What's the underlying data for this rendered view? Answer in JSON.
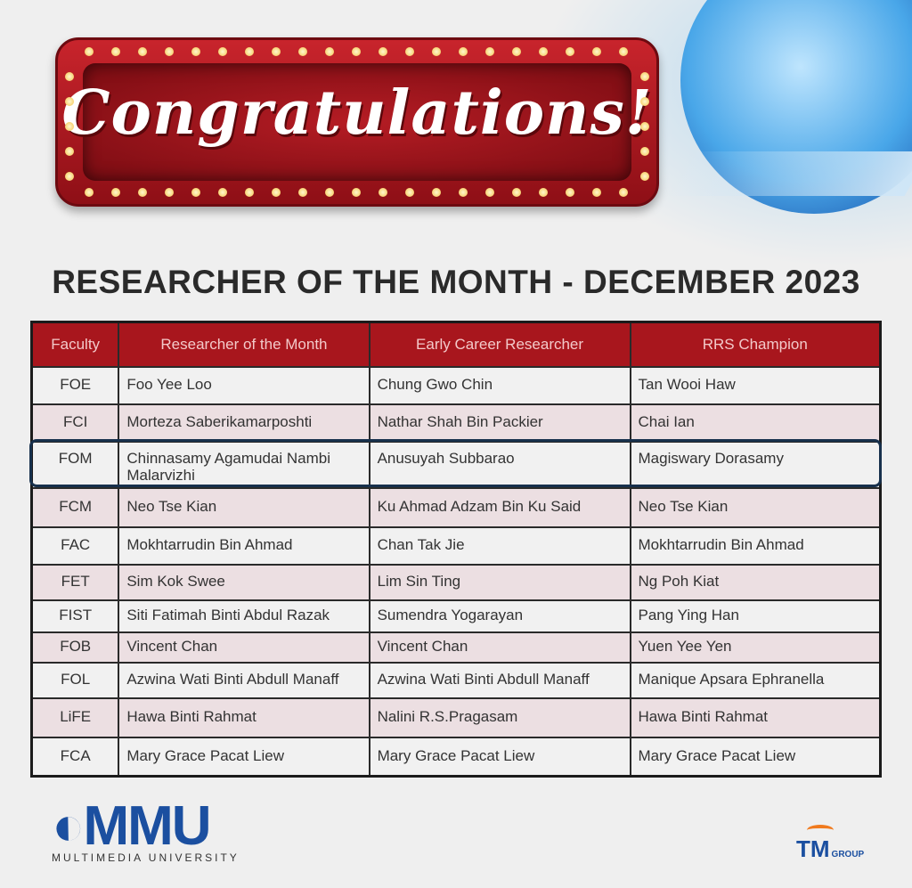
{
  "banner": {
    "text": "Congratulations!"
  },
  "title": "RESEARCHER OF THE MONTH - DECEMBER 2023",
  "table": {
    "headers": [
      "Faculty",
      "Researcher of the Month",
      "Early Career Researcher",
      "RRS Champion"
    ],
    "highlighted_row": "FOM",
    "rows": [
      [
        "FOE",
        "Foo Yee Loo",
        "Chung Gwo Chin",
        "Tan Wooi Haw"
      ],
      [
        "FCI",
        "Morteza Saberikamarposhti",
        "Nathar Shah Bin Packier",
        "Chai Ian"
      ],
      [
        "FOM",
        "Chinnasamy Agamudai Nambi Malarvizhi",
        "Anusuyah Subbarao",
        "Magiswary Dorasamy"
      ],
      [
        "FCM",
        "Neo Tse Kian",
        "Ku Ahmad Adzam Bin Ku Said",
        "Neo Tse Kian"
      ],
      [
        "FAC",
        "Mokhtarrudin Bin Ahmad",
        "Chan Tak Jie",
        "Mokhtarrudin Bin Ahmad"
      ],
      [
        "FET",
        "Sim Kok Swee",
        "Lim Sin Ting",
        "Ng Poh Kiat"
      ],
      [
        "FIST",
        "Siti Fatimah Binti Abdul Razak",
        "Sumendra Yogarayan",
        "Pang Ying Han"
      ],
      [
        "FOB",
        "Vincent Chan",
        "Vincent Chan",
        "Yuen Yee Yen"
      ],
      [
        "FOL",
        "Azwina Wati Binti Abdull Manaff",
        "Azwina Wati Binti Abdull Manaff",
        "Manique Apsara Ephranella"
      ],
      [
        "LiFE",
        "Hawa Binti Rahmat",
        "Nalini R.S.Pragasam",
        "Hawa Binti Rahmat"
      ],
      [
        "FCA",
        "Mary Grace Pacat Liew",
        "Mary Grace Pacat Liew",
        "Mary Grace Pacat Liew"
      ]
    ]
  },
  "footer": {
    "mmu_logo": "MMU",
    "mmu_sub": "MULTIMEDIA UNIVERSITY",
    "tm_logo": "TM",
    "tm_group": "GROUP"
  },
  "colors": {
    "header_red": "#a8161d",
    "highlight_border": "#17304c",
    "brand_blue": "#1b4fa0"
  }
}
